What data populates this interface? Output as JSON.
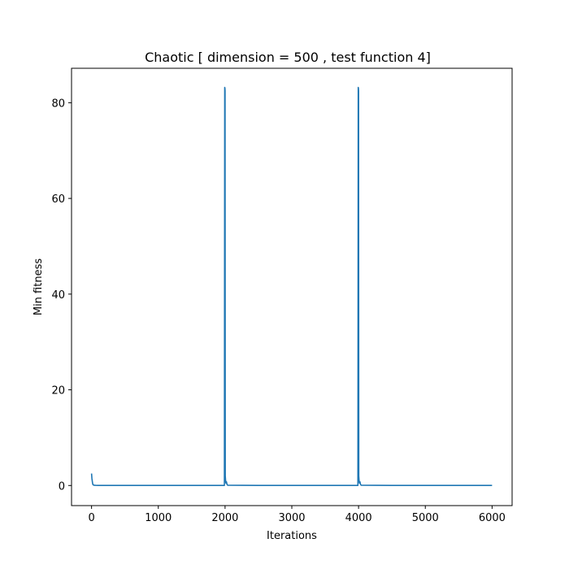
{
  "chart_data": {
    "type": "line",
    "title": "Chaotic [ dimension = 500 ,  test function 4]",
    "xlabel": "Iterations",
    "ylabel": "Min fitness",
    "xlim": [
      -300,
      6300
    ],
    "ylim": [
      -4.2,
      87.2
    ],
    "xticks": [
      0,
      1000,
      2000,
      3000,
      4000,
      5000,
      6000
    ],
    "yticks": [
      0,
      20,
      40,
      60,
      80
    ],
    "grid": false,
    "series": [
      {
        "color": "#1f77b4",
        "x": [
          0,
          5,
          10,
          15,
          20,
          30,
          40,
          60,
          100,
          500,
          1000,
          1500,
          1990,
          1995,
          1998,
          2000,
          2003,
          2008,
          2012,
          2020,
          2030,
          2040,
          2500,
          3000,
          3500,
          3990,
          3995,
          3998,
          4000,
          4003,
          4008,
          4012,
          4020,
          4030,
          4040,
          4500,
          5000,
          5500,
          6000
        ],
        "y": [
          2.5,
          1.5,
          1.0,
          0.5,
          0.2,
          0.1,
          0.05,
          0.03,
          0.02,
          0.02,
          0.02,
          0.02,
          0.02,
          83.2,
          83.0,
          82.5,
          2.0,
          1.0,
          0.5,
          0.8,
          0.2,
          0.05,
          0.02,
          0.02,
          0.02,
          0.02,
          83.2,
          83.0,
          82.5,
          2.0,
          1.0,
          0.5,
          0.8,
          0.2,
          0.05,
          0.02,
          0.02,
          0.02,
          0.02
        ]
      }
    ]
  }
}
